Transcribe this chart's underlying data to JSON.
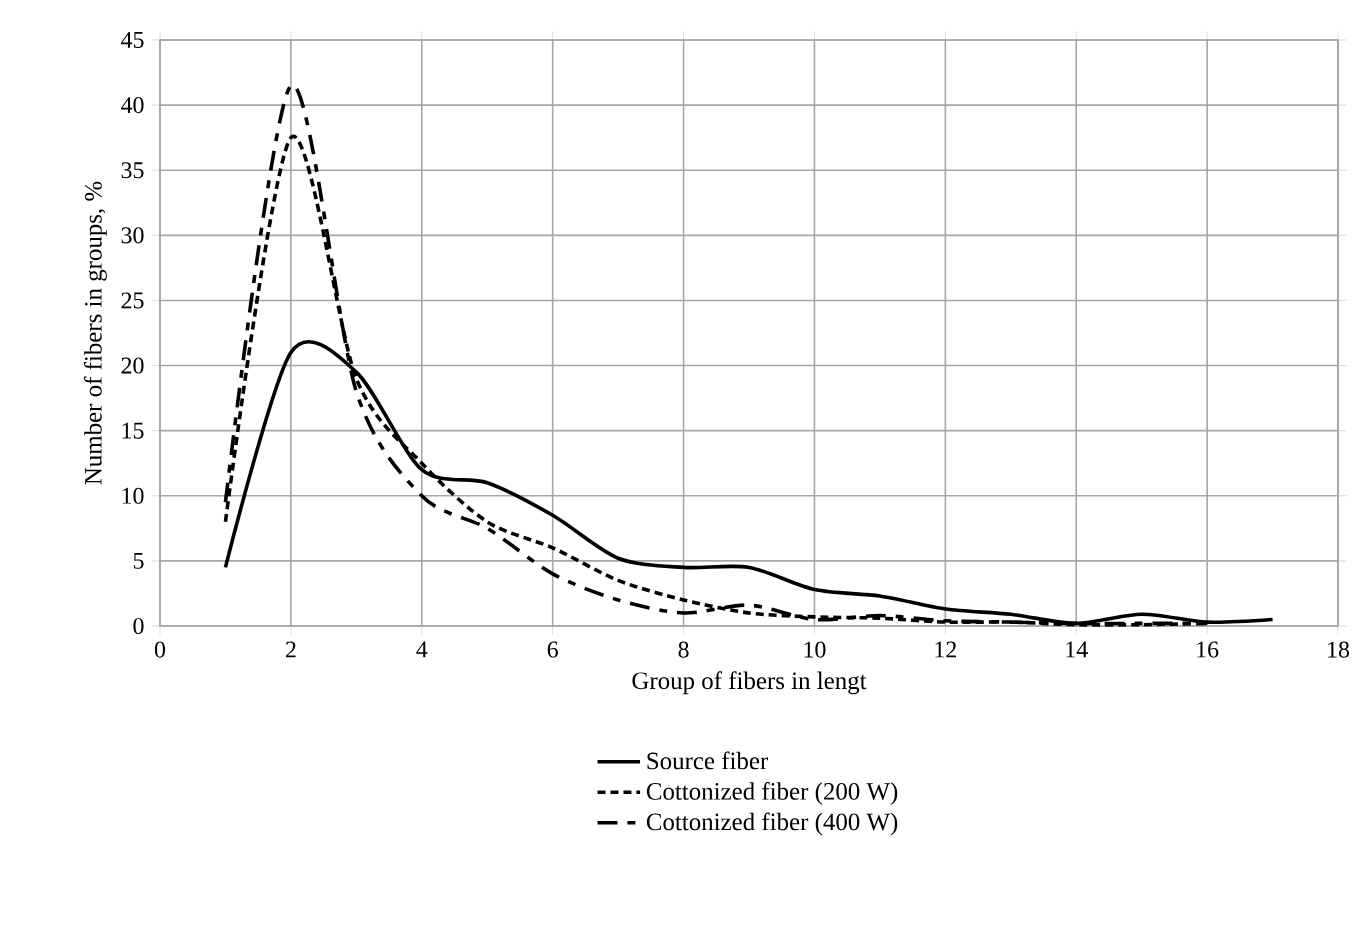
{
  "chart_data": {
    "type": "line",
    "xlabel": "Group of fibers in lengt",
    "ylabel": "Number of fibers in groups, %",
    "x": [
      1,
      2,
      3,
      4,
      5,
      6,
      7,
      8,
      9,
      10,
      11,
      12,
      13,
      14,
      15,
      16,
      17
    ],
    "xlim": [
      0,
      18
    ],
    "xticks": [
      0,
      2,
      4,
      6,
      8,
      10,
      12,
      14,
      16,
      18
    ],
    "ylim": [
      0,
      45
    ],
    "yticks": [
      0,
      5,
      10,
      15,
      20,
      25,
      30,
      35,
      40,
      45
    ],
    "grid": true,
    "legend": "bottom",
    "marker": "none",
    "series": [
      {
        "name": "Source fiber",
        "color": "#000000",
        "line_style": "solid",
        "values": [
          4.5,
          21,
          19.5,
          12,
          11,
          8.5,
          5.2,
          4.5,
          4.5,
          2.8,
          2.3,
          1.3,
          0.9,
          0.2,
          0.9,
          0.3,
          0.5
        ]
      },
      {
        "name": "Cottonized fiber  (200 W)",
        "color": "#000000",
        "line_style": "dashed",
        "values": [
          8,
          37.5,
          19,
          12.5,
          8,
          6,
          3.5,
          2,
          1,
          0.7,
          0.6,
          0.3,
          0.3,
          0.1,
          0.1,
          0.2,
          null
        ]
      },
      {
        "name": "Cottonized fiber  (400 W)",
        "color": "#000000",
        "line_style": "longdashed",
        "values": [
          9.5,
          41.5,
          18,
          10,
          7.5,
          4,
          2,
          1,
          1.6,
          0.5,
          0.8,
          0.4,
          0.3,
          0.2,
          0.2,
          0.2,
          null
        ]
      }
    ]
  }
}
